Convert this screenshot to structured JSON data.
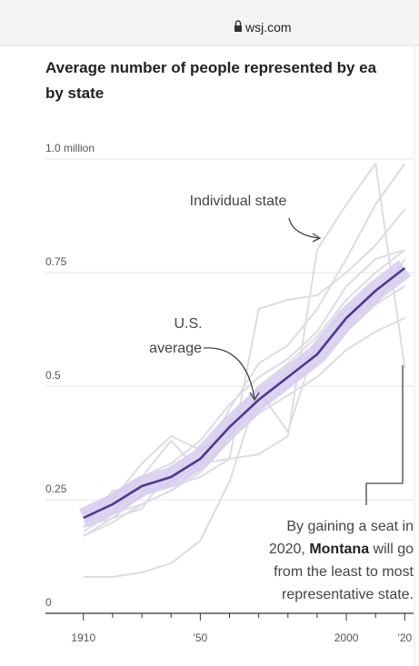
{
  "browser": {
    "url": "wsj.com"
  },
  "chart_data": {
    "type": "line",
    "title_lines": [
      "Average number of people represented by ea",
      "by state"
    ],
    "x": [
      1910,
      1920,
      1930,
      1940,
      1950,
      1960,
      1970,
      1980,
      1990,
      2000,
      2010,
      2020
    ],
    "xlim": [
      1897,
      2023
    ],
    "xticks": [
      1910,
      {
        "value": 1950,
        "label": "'50"
      },
      2000,
      {
        "value": 2020,
        "label": "'20"
      }
    ],
    "xminor_ticks": [
      1920,
      1930,
      1940,
      1960,
      1970,
      1980,
      1990,
      2010
    ],
    "ylim": [
      0,
      1
    ],
    "yticks": [
      0,
      0.25,
      0.5,
      0.75,
      {
        "value": 1,
        "label": "1.0 million"
      }
    ],
    "grid": true,
    "series": [
      {
        "color": "#dcdce4",
        "values": [
          0.2,
          0.22,
          0.24,
          0.27,
          0.32,
          0.45,
          0.55,
          0.59,
          0.67,
          0.78,
          0.9,
          0.99
        ]
      },
      {
        "color": "#dcdce4",
        "values": [
          0.19,
          0.21,
          0.26,
          0.29,
          0.33,
          0.42,
          0.5,
          0.55,
          0.61,
          0.69,
          0.75,
          0.8
        ]
      },
      {
        "color": "#dcdce4",
        "values": [
          0.2,
          0.25,
          0.33,
          0.39,
          0.36,
          0.4,
          0.45,
          0.5,
          0.55,
          0.62,
          0.68,
          0.72
        ]
      },
      {
        "color": "#dcdce4",
        "values": [
          0.17,
          0.2,
          0.24,
          0.27,
          0.31,
          0.38,
          0.44,
          0.48,
          0.52,
          0.58,
          0.62,
          0.65
        ]
      },
      {
        "color": "#dcdce4",
        "values": [
          0.22,
          0.26,
          0.3,
          0.33,
          0.38,
          0.46,
          0.52,
          0.56,
          0.62,
          0.72,
          0.78,
          0.8
        ]
      },
      {
        "color": "#dcdce4",
        "values": [
          0.18,
          0.22,
          0.3,
          0.38,
          0.31,
          0.39,
          0.47,
          0.53,
          0.58,
          0.64,
          0.7,
          0.74
        ]
      },
      {
        "color": "#dcdce4",
        "values": [
          0.17,
          0.21,
          0.23,
          0.32,
          0.33,
          0.34,
          0.67,
          0.69,
          0.7,
          0.75,
          0.81,
          0.89
        ]
      },
      {
        "color": "#dcdce4",
        "values": [
          0.08,
          0.08,
          0.09,
          0.11,
          0.16,
          0.29,
          0.49,
          0.4,
          0.6,
          0.67,
          0.68,
          0.78
        ]
      },
      {
        "color": "#dcdce4",
        "values": [
          0.19,
          0.27,
          0.27,
          0.28,
          0.3,
          0.34,
          0.35,
          0.39,
          0.8,
          0.9,
          0.99,
          0.54
        ]
      },
      {
        "color": "#4b3b8c",
        "values": [
          0.21,
          0.24,
          0.28,
          0.3,
          0.34,
          0.41,
          0.47,
          0.52,
          0.57,
          0.65,
          0.71,
          0.76
        ]
      }
    ],
    "annotations": {
      "individual": "Individual state",
      "us_line1": "U.S.",
      "us_line2": "average",
      "note_lines": [
        "By gaining a seat in",
        "2020, ",
        "Montana",
        " will go",
        "from the least to most",
        "representative state."
      ]
    }
  }
}
